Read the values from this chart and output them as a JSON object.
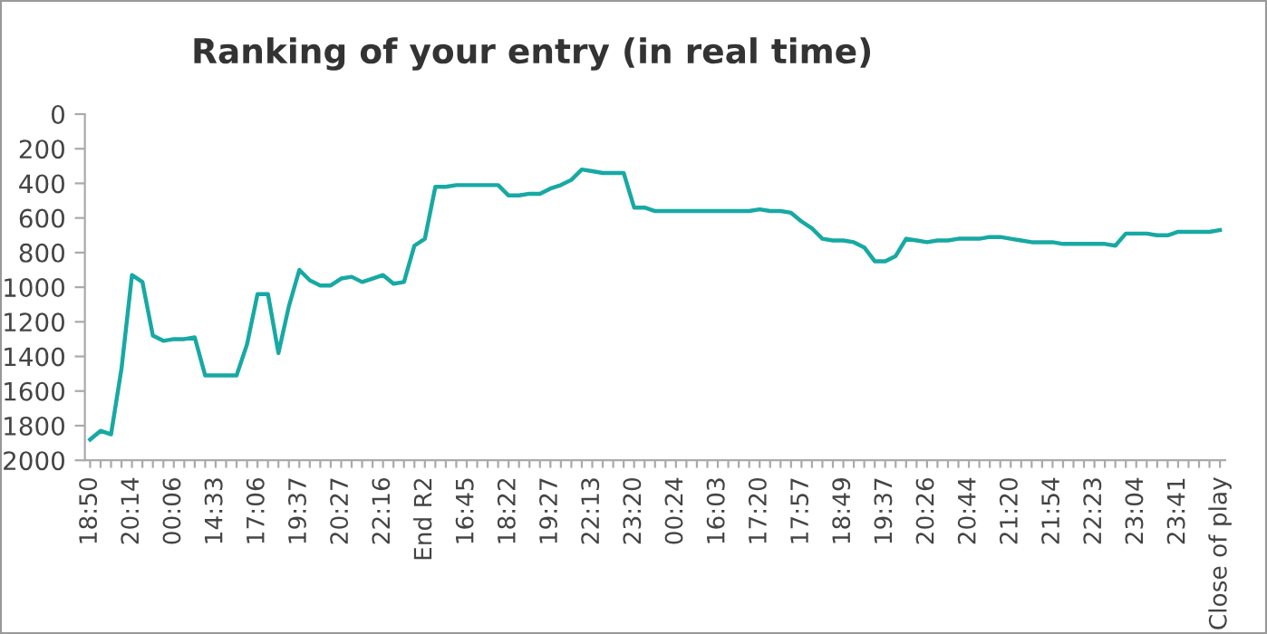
{
  "chart_data": {
    "type": "line",
    "title": "Ranking of your entry (in real time)",
    "categories": [
      "18:50",
      null,
      null,
      null,
      "20:14",
      null,
      null,
      null,
      "00:06",
      null,
      null,
      null,
      "14:33",
      null,
      null,
      null,
      "17:06",
      null,
      null,
      null,
      "19:37",
      null,
      null,
      null,
      "20:27",
      null,
      null,
      null,
      "22:16",
      null,
      null,
      null,
      "End R2",
      null,
      null,
      null,
      "16:45",
      null,
      null,
      null,
      "18:22",
      null,
      null,
      null,
      "19:27",
      null,
      null,
      null,
      "22:13",
      null,
      null,
      null,
      "23:20",
      null,
      null,
      null,
      "00:24",
      null,
      null,
      null,
      "16:03",
      null,
      null,
      null,
      "17:20",
      null,
      null,
      null,
      "17:57",
      null,
      null,
      null,
      "18:49",
      null,
      null,
      null,
      "19:37",
      null,
      null,
      null,
      "20:26",
      null,
      null,
      null,
      "20:44",
      null,
      null,
      null,
      "21:20",
      null,
      null,
      null,
      "21:54",
      null,
      null,
      null,
      "22:23",
      null,
      null,
      null,
      "23:04",
      null,
      null,
      null,
      "23:41",
      null,
      null,
      null,
      "Close of play"
    ],
    "series": [
      {
        "color": "#17a9a4",
        "values": [
          1880,
          1830,
          1850,
          1470,
          930,
          970,
          1280,
          1310,
          1300,
          1300,
          1290,
          1510,
          1510,
          1510,
          1510,
          1330,
          1040,
          1040,
          1380,
          1110,
          900,
          960,
          990,
          990,
          950,
          940,
          970,
          950,
          930,
          980,
          970,
          760,
          720,
          420,
          420,
          410,
          410,
          410,
          410,
          410,
          470,
          470,
          460,
          460,
          430,
          410,
          380,
          320,
          330,
          340,
          340,
          340,
          540,
          540,
          560,
          560,
          560,
          560,
          560,
          560,
          560,
          560,
          560,
          560,
          550,
          560,
          560,
          570,
          620,
          660,
          720,
          730,
          730,
          740,
          770,
          850,
          850,
          820,
          720,
          730,
          740,
          730,
          730,
          720,
          720,
          720,
          710,
          710,
          720,
          730,
          740,
          740,
          740,
          750,
          750,
          750,
          750,
          750,
          760,
          690,
          690,
          690,
          700,
          700,
          680,
          680,
          680,
          680,
          670
        ]
      }
    ],
    "ylim": [
      2000,
      0
    ],
    "yticks": [
      0,
      200,
      400,
      600,
      800,
      1000,
      1200,
      1400,
      1600,
      1800,
      2000
    ],
    "grid": false,
    "marker": "none",
    "line_style": "solid"
  }
}
